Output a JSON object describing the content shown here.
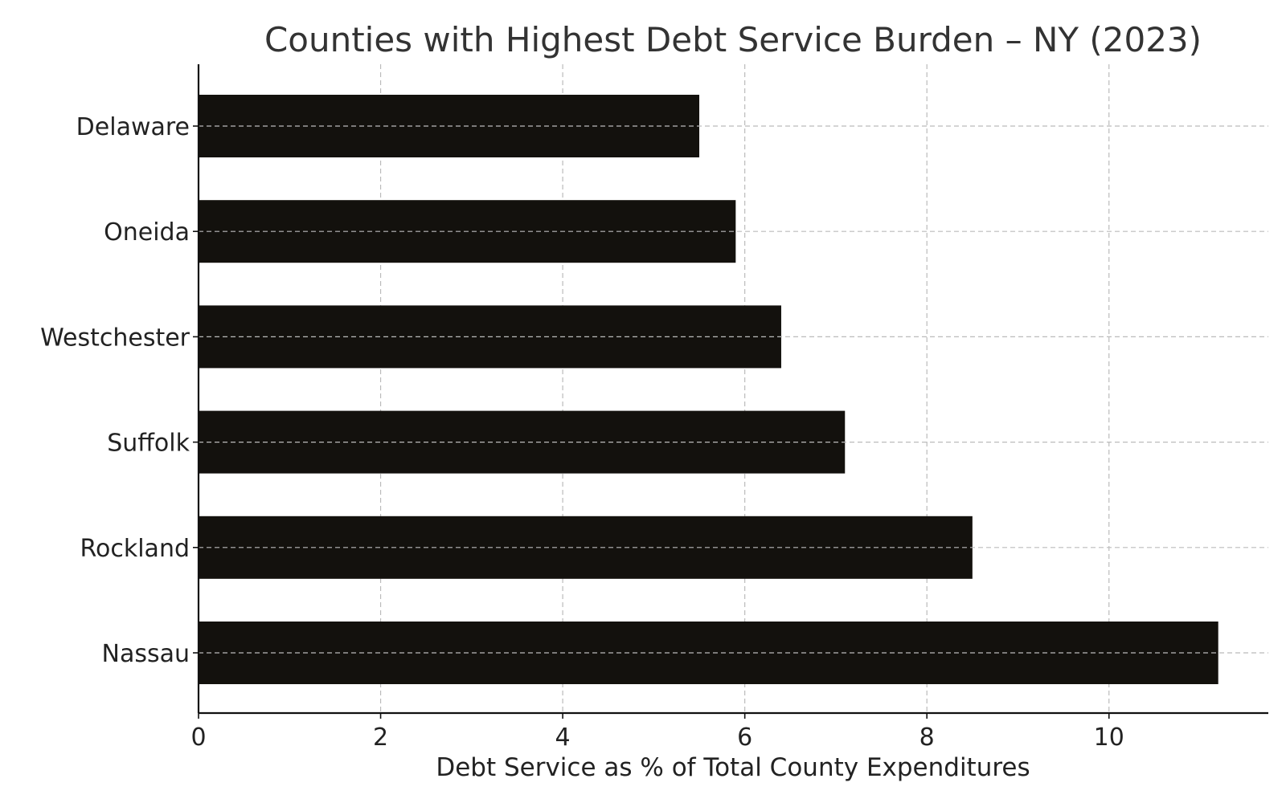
{
  "chart_data": {
    "type": "bar",
    "orientation": "horizontal",
    "title": "Counties with Highest Debt Service Burden – NY (2023)",
    "xlabel": "Debt Service as % of Total County Expenditures",
    "ylabel": "",
    "categories": [
      "Nassau",
      "Rockland",
      "Suffolk",
      "Westchester",
      "Oneida",
      "Delaware"
    ],
    "values": [
      11.2,
      8.5,
      7.1,
      6.4,
      5.9,
      5.5
    ],
    "xlim": [
      0,
      11.75
    ],
    "xticks": [
      "0",
      "2",
      "4",
      "6",
      "8",
      "10"
    ],
    "grid": true,
    "legend": "none",
    "bar_color": "#13110d",
    "grid_color": "#bbbbbb"
  }
}
